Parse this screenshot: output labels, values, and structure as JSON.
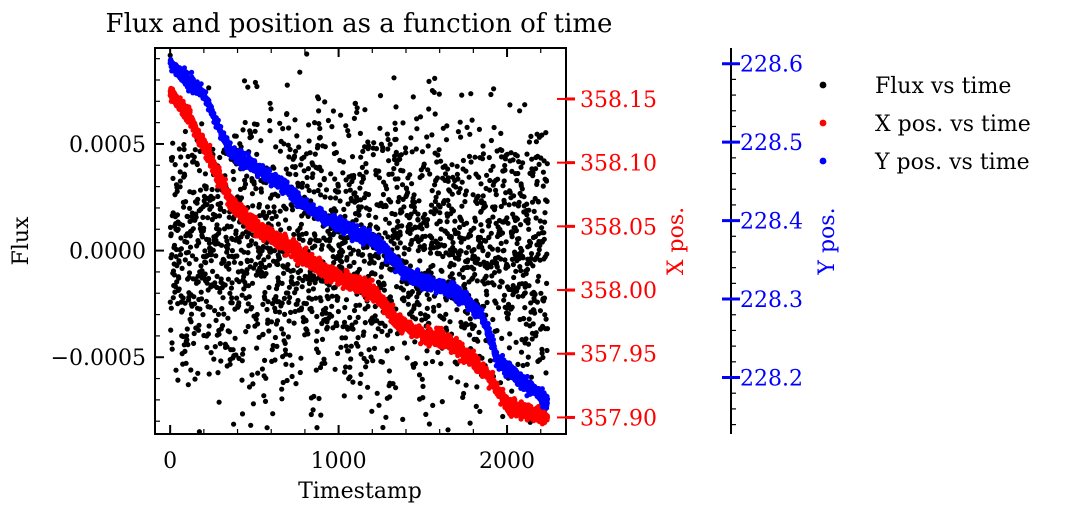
{
  "chart_data": {
    "type": "scatter",
    "title": "Flux and position as a function of time",
    "xlabel": "Timestamp",
    "xlim": [
      -90,
      2350
    ],
    "xticks": [
      0,
      1000,
      2000
    ],
    "xtick_labels": [
      "0",
      "1000",
      "2000"
    ],
    "y_axes": {
      "flux": {
        "label": "Flux",
        "lim": [
          -0.00086,
          0.00095
        ],
        "ticks": [
          -0.0005,
          0.0,
          0.0005
        ],
        "tick_labels": [
          "−0.0005",
          "0.0000",
          "0.0005"
        ],
        "color": "#000000"
      },
      "xpos": {
        "label": "X pos.",
        "lim": [
          357.887,
          358.19
        ],
        "ticks": [
          357.9,
          357.95,
          358.0,
          358.05,
          358.1,
          358.15
        ],
        "tick_labels": [
          "357.90",
          "357.95",
          "358.00",
          "358.05",
          "358.10",
          "358.15"
        ],
        "color": "#ff0000"
      },
      "ypos": {
        "label": "Y pos.",
        "lim": [
          228.128,
          228.62
        ],
        "ticks": [
          228.2,
          228.3,
          228.4,
          228.5,
          228.6
        ],
        "tick_labels": [
          "228.2",
          "228.3",
          "228.4",
          "228.5",
          "228.6"
        ],
        "color": "#0000ff"
      }
    },
    "series": [
      {
        "name": "Flux vs time",
        "axis": "flux",
        "color": "#000000",
        "x_range": [
          0,
          2240
        ],
        "trend": [
          [
            0,
            0.0
          ],
          [
            2240,
            0.0
          ]
        ],
        "noise_std": 0.00033,
        "count": 2250
      },
      {
        "name": "X pos. vs time",
        "axis": "xpos",
        "color": "#ff0000",
        "x_range": [
          0,
          2240
        ],
        "trend": [
          [
            0,
            358.155
          ],
          [
            100,
            358.14
          ],
          [
            250,
            358.1
          ],
          [
            380,
            358.065
          ],
          [
            500,
            358.05
          ],
          [
            700,
            358.035
          ],
          [
            850,
            358.02
          ],
          [
            1000,
            358.01
          ],
          [
            1200,
            358.0
          ],
          [
            1350,
            357.975
          ],
          [
            1500,
            357.965
          ],
          [
            1650,
            357.96
          ],
          [
            1800,
            357.945
          ],
          [
            1900,
            357.93
          ],
          [
            2000,
            357.91
          ],
          [
            2240,
            357.9
          ]
        ],
        "noise_std": 0.003,
        "count": 2250
      },
      {
        "name": "Y pos. vs time",
        "axis": "ypos",
        "color": "#0000ff",
        "x_range": [
          0,
          2240
        ],
        "trend": [
          [
            0,
            228.6
          ],
          [
            200,
            228.56
          ],
          [
            350,
            228.49
          ],
          [
            700,
            228.44
          ],
          [
            850,
            228.41
          ],
          [
            1000,
            228.395
          ],
          [
            1150,
            228.38
          ],
          [
            1250,
            228.37
          ],
          [
            1400,
            228.33
          ],
          [
            1550,
            228.32
          ],
          [
            1700,
            228.31
          ],
          [
            1850,
            228.28
          ],
          [
            1950,
            228.22
          ],
          [
            2240,
            228.17
          ]
        ],
        "noise_std": 0.004,
        "count": 2250
      }
    ],
    "legend": {
      "placement": "right",
      "entries": [
        "Flux vs time",
        "X pos. vs time",
        "Y pos. vs time"
      ]
    },
    "grid": false
  }
}
